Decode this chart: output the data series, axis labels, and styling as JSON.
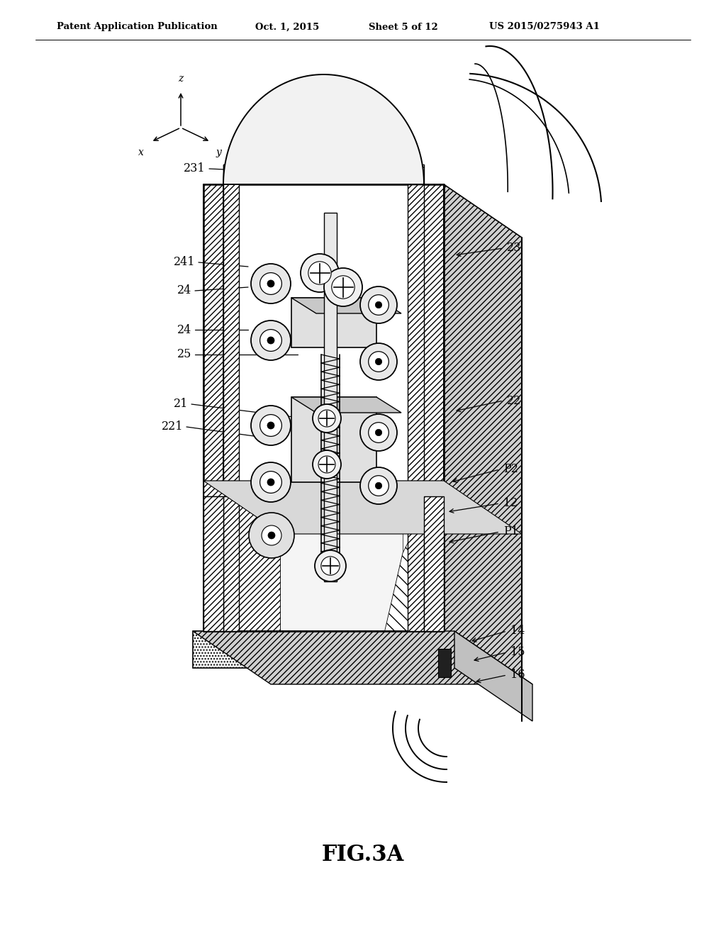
{
  "bg_color": "#ffffff",
  "header_left": "Patent Application Publication",
  "header_mid1": "Oct. 1, 2015",
  "header_mid2": "Sheet 5 of 12",
  "header_right": "US 2015/0275943 A1",
  "fig_label": "FIG.3A",
  "black": "#000000",
  "light_gray": "#e8e8e8",
  "mid_gray": "#cccccc",
  "dark_gray": "#aaaaaa",
  "white": "#ffffff",
  "hatch_color": "#000000"
}
